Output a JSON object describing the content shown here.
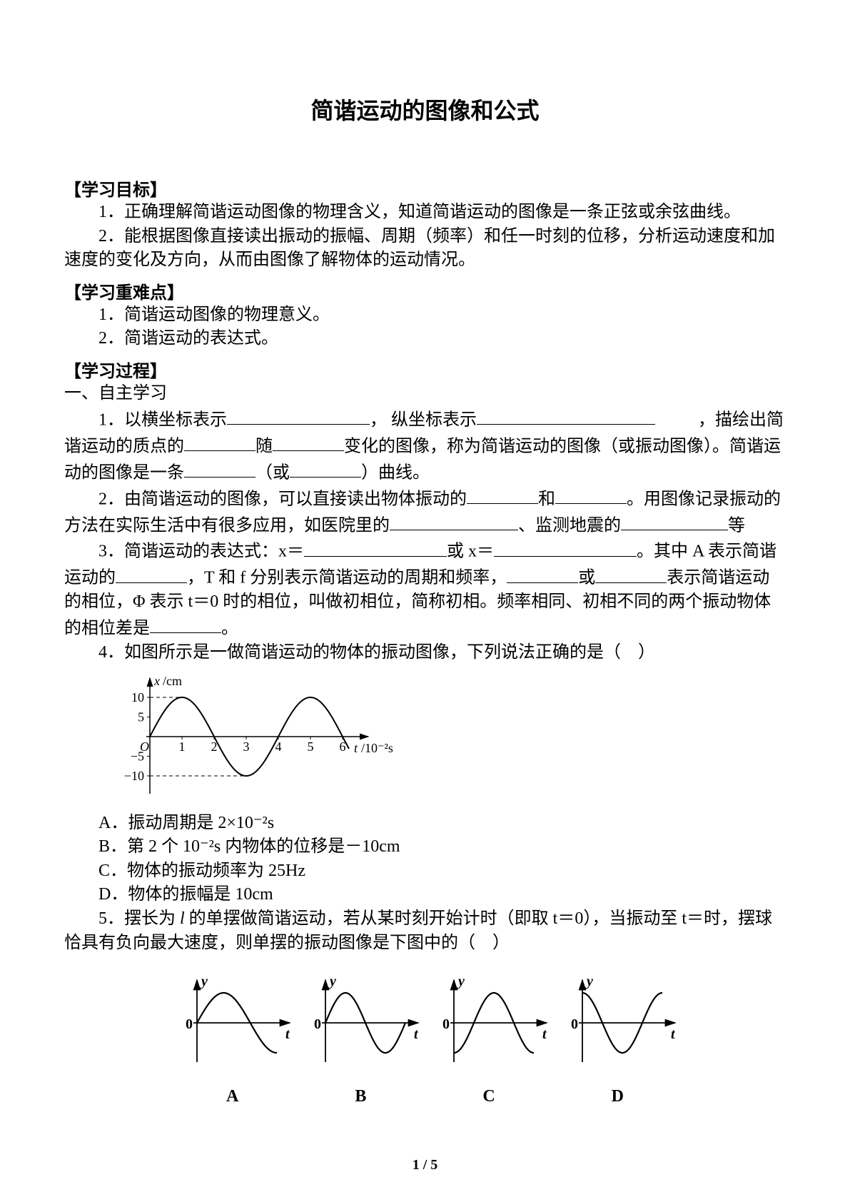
{
  "title": "简谐运动的图像和公式",
  "sections": {
    "goals_header": "【学习目标】",
    "goal1": "1．正确理解简谐运动图像的物理含义，知道简谐运动的图像是一条正弦或余弦曲线。",
    "goal2": "2．能根据图像直接读出振动的振幅、周期（频率）和任一时刻的位移，分析运动速度和加速度的变化及方向，从而由图像了解物体的运动情况。",
    "difficulty_header": "【学习重难点】",
    "diff1": "1．简谐运动图像的物理意义。",
    "diff2": "2．简谐运动的表达式。",
    "process_header": "【学习过程】",
    "section1_header": "一、自主学习",
    "q1a": "1．以横坐标表示",
    "q1b": "， 纵坐标表示",
    "q1c": "，描绘出简谐运动的质点的",
    "q1d": "随",
    "q1e": "变化的图像，称为简谐运动的图像（或振动图像）。简谐运动的图像是一条",
    "q1f": "（或",
    "q1g": "）曲线。",
    "q2a": "2．由简谐运动的图像，可以直接读出物体振动的",
    "q2b": "和",
    "q2c": "。用图像记录振动的方法在实际生活中有很多应用，如医院里的",
    "q2d": "、监测地震的",
    "q2e": "等",
    "q3a": "3．简谐运动的表达式：x＝",
    "q3b": "或 x＝",
    "q3c": "。其中 A 表示简谐运动的",
    "q3d": "，T 和 f 分别表示简谐运动的周期和频率，",
    "q3e": "或",
    "q3f": "表示简谐运动的相位，Φ 表示 t＝0 时的相位，叫做初相位，简称初相。频率相同、初相不同的两个振动物体的相位差是",
    "q3g": "。",
    "q4": "4．如图所示是一做简谐运动的物体的振动图像，下列说法正确的是（　）",
    "optA": "A．振动周期是 2×10⁻²s",
    "optB": "B．第 2 个 10⁻²s 内物体的位移是－10cm",
    "optC": "C．物体的振动频率为 25Hz",
    "optD": "D．物体的振幅是 10cm",
    "q5a": "5．摆长为 ",
    "q5b": " 的单摆做简谐运动，若从某时刻开始计时（即取 t＝0），当振动至  t＝时，摆球恰具有负向最大速度，则单摆的振动图像是下图中的（　）",
    "labelA": "A",
    "labelB": "B",
    "labelC": "C",
    "labelD": "D"
  },
  "chart_q4": {
    "type": "line",
    "xlabel": "t/10⁻²s",
    "ylabel": "x/cm",
    "xrange": [
      0,
      6.5
    ],
    "yrange": [
      -12,
      12
    ],
    "xticks": [
      1,
      2,
      3,
      4,
      5,
      6
    ],
    "yticks_pos": [
      5,
      10
    ],
    "yticks_neg": [
      -5,
      -10
    ],
    "amplitude": 10,
    "period": 4,
    "line_color": "#000000",
    "line_width": 2,
    "dash_color": "#000000"
  },
  "chart_q5": {
    "type": "line_multi",
    "xlabel": "t",
    "ylabel": "y",
    "line_color": "#000000",
    "line_width": 2.2,
    "variants": [
      {
        "id": "A",
        "phase_type": "sin_pos_start"
      },
      {
        "id": "B",
        "phase_type": "sin_neg_quarter"
      },
      {
        "id": "C",
        "phase_type": "neg_cos"
      },
      {
        "id": "D",
        "phase_type": "cos"
      }
    ]
  },
  "pagenum": "1 / 5"
}
